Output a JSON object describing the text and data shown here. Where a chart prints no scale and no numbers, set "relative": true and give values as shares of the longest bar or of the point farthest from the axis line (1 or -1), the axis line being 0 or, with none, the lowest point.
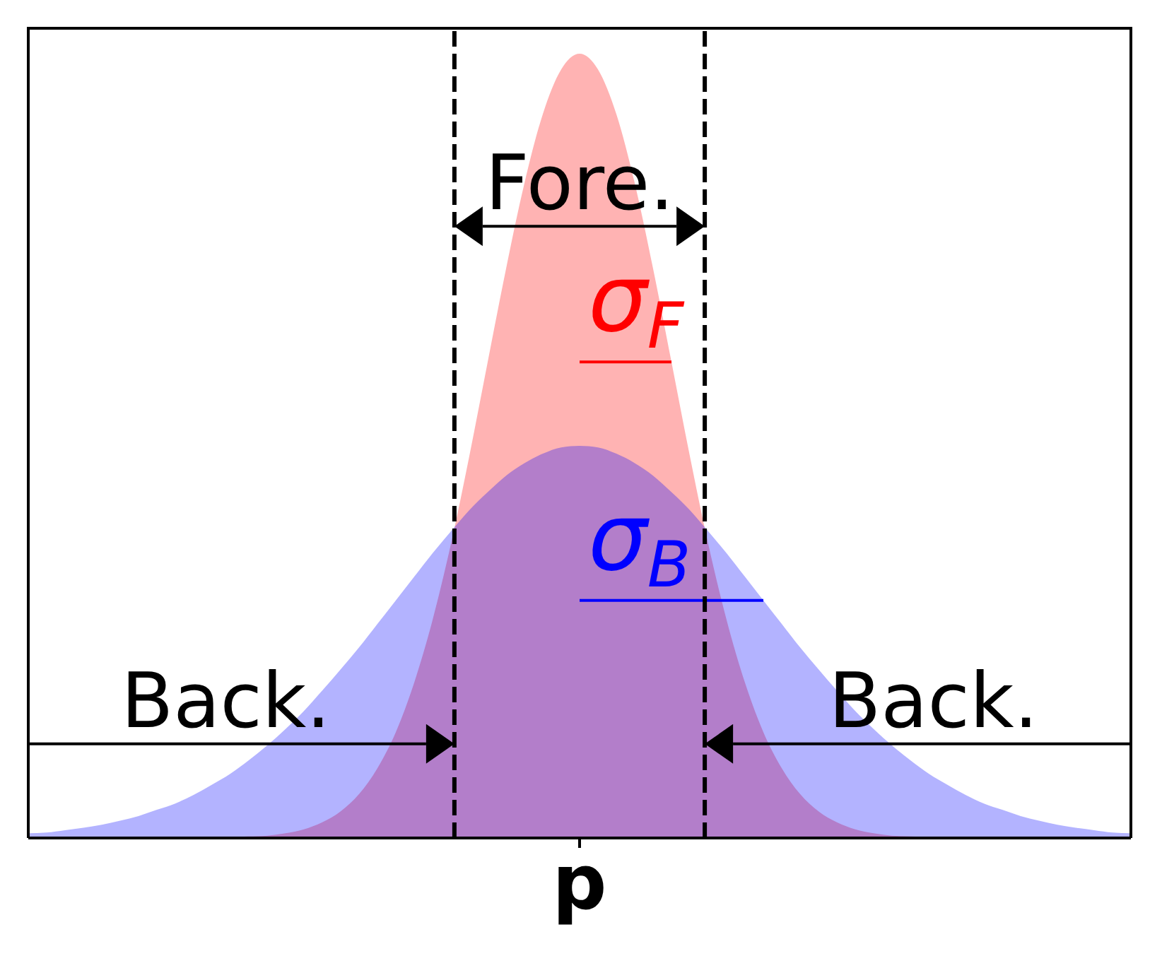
{
  "chart_data": {
    "type": "area",
    "relative": true,
    "xlabel": "p",
    "categories": [
      null,
      null,
      null,
      null,
      null,
      null,
      null,
      null,
      null,
      null,
      null,
      null,
      null,
      null,
      null,
      null,
      null,
      null,
      null,
      null,
      null,
      null,
      null,
      null,
      null,
      null,
      null,
      null,
      null,
      null,
      null,
      null,
      null,
      null,
      null,
      null,
      null,
      null,
      null,
      null,
      null,
      null,
      null,
      null,
      null,
      null,
      null,
      null,
      null,
      null,
      null,
      null,
      null,
      null,
      null,
      null,
      null,
      null,
      null,
      null,
      null
    ],
    "series": [
      {
        "color": "#ffb3b3",
        "values": [
          0,
          0,
          0,
          0,
          0,
          0,
          0,
          0,
          0,
          0,
          0,
          0.001,
          0.002,
          0.003,
          0.006,
          0.011,
          0.02,
          0.034,
          0.056,
          0.089,
          0.135,
          0.198,
          0.278,
          0.375,
          0.487,
          0.607,
          0.726,
          0.835,
          0.923,
          0.98,
          1,
          0.98,
          0.923,
          0.835,
          0.726,
          0.607,
          0.487,
          0.375,
          0.278,
          0.198,
          0.135,
          0.089,
          0.056,
          0.034,
          0.02,
          0.011,
          0.006,
          0.003,
          0.002,
          0.001,
          0,
          0,
          0,
          0,
          0,
          0,
          0,
          0,
          0,
          0,
          0
        ]
      },
      {
        "color": "#b3b3ff",
        "values": [
          0.006,
          0.007,
          0.01,
          0.013,
          0.017,
          0.022,
          0.028,
          0.036,
          0.044,
          0.055,
          0.068,
          0.082,
          0.099,
          0.118,
          0.139,
          0.162,
          0.188,
          0.215,
          0.243,
          0.273,
          0.303,
          0.333,
          0.363,
          0.391,
          0.418,
          0.441,
          0.462,
          0.478,
          0.49,
          0.498,
          0.5,
          0.498,
          0.49,
          0.478,
          0.462,
          0.441,
          0.418,
          0.391,
          0.363,
          0.333,
          0.303,
          0.273,
          0.243,
          0.215,
          0.188,
          0.162,
          0.139,
          0.118,
          0.099,
          0.082,
          0.068,
          0.055,
          0.044,
          0.036,
          0.028,
          0.022,
          0.017,
          0.013,
          0.01,
          0.007,
          0.006
        ]
      },
      {
        "type": "line",
        "name": "σ$_{F}$",
        "color": "#ff0000",
        "values": [
          null,
          null,
          null,
          null,
          null,
          null,
          null,
          null,
          null,
          null,
          null,
          null,
          null,
          null,
          null,
          null,
          null,
          null,
          null,
          null,
          null,
          null,
          null,
          null,
          null,
          null,
          null,
          null,
          null,
          null,
          0.607,
          0.607,
          0.607,
          0.607,
          0.607,
          0.607,
          null,
          null,
          null,
          null,
          null,
          null,
          null,
          null,
          null,
          null,
          null,
          null,
          null,
          null,
          null,
          null,
          null,
          null,
          null,
          null,
          null,
          null,
          null,
          null,
          null
        ]
      },
      {
        "type": "line",
        "name": "σ$_{B}$",
        "color": "#0000ff",
        "values": [
          null,
          null,
          null,
          null,
          null,
          null,
          null,
          null,
          null,
          null,
          null,
          null,
          null,
          null,
          null,
          null,
          null,
          null,
          null,
          null,
          null,
          null,
          null,
          null,
          null,
          null,
          null,
          null,
          null,
          null,
          0.303,
          0.303,
          0.303,
          0.303,
          0.303,
          0.303,
          0.303,
          0.303,
          0.303,
          0.303,
          0.303,
          null,
          null,
          null,
          null,
          null,
          null,
          null,
          null,
          null,
          null,
          null,
          null,
          null,
          null,
          null,
          null,
          null,
          null,
          null,
          null
        ]
      }
    ],
    "annotations": [
      "Fore.",
      "Back.",
      "Back."
    ]
  }
}
